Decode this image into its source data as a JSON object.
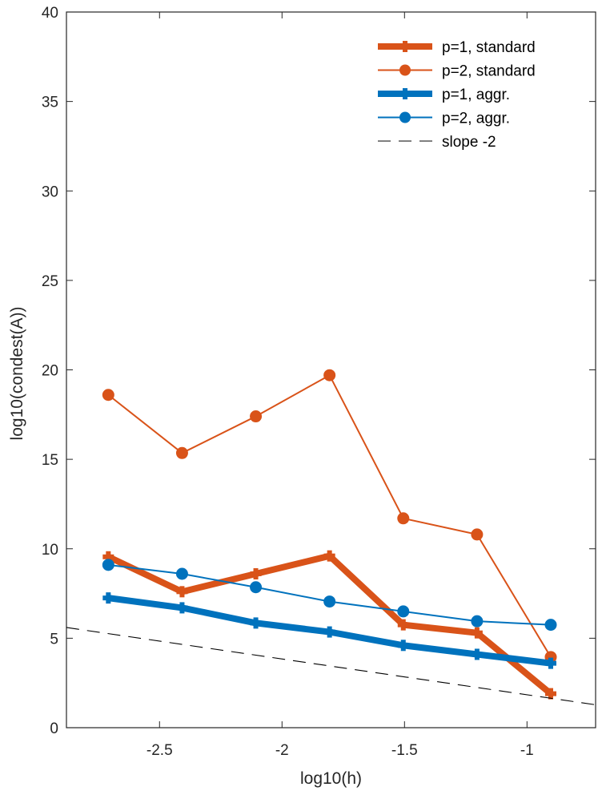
{
  "chart_data": {
    "type": "line",
    "xlabel": "log10(h)",
    "ylabel": "log10(condest(A))",
    "xlim": [
      -2.88,
      -0.72
    ],
    "ylim": [
      0,
      40
    ],
    "xticks": [
      -2.5,
      -2,
      -1.5,
      -1
    ],
    "xtick_labels": [
      "-2.5",
      "-2",
      "-1.5",
      "-1"
    ],
    "yticks": [
      0,
      5,
      10,
      15,
      20,
      25,
      30,
      35,
      40
    ],
    "ytick_labels": [
      "0",
      "5",
      "10",
      "15",
      "20",
      "25",
      "30",
      "35",
      "40"
    ],
    "grid": false,
    "legend_position": "top-right",
    "x": [
      -2.709,
      -2.408,
      -2.107,
      -1.806,
      -1.505,
      -1.204,
      -0.903
    ],
    "series": [
      {
        "name": "p=1, standard",
        "color": "#d95319",
        "line": "thick",
        "marker": "plus",
        "values": [
          9.55,
          7.6,
          8.6,
          9.6,
          5.75,
          5.3,
          1.9
        ]
      },
      {
        "name": "p=2, standard",
        "color": "#d95319",
        "line": "thin",
        "marker": "circle",
        "values": [
          18.6,
          15.35,
          17.4,
          19.7,
          11.7,
          10.8,
          3.95
        ]
      },
      {
        "name": "p=1, aggr.",
        "color": "#0072bd",
        "line": "thick",
        "marker": "plus",
        "values": [
          7.25,
          6.7,
          5.85,
          5.35,
          4.6,
          4.1,
          3.6
        ]
      },
      {
        "name": "p=2, aggr.",
        "color": "#0072bd",
        "line": "thin",
        "marker": "circle",
        "values": [
          9.1,
          8.6,
          7.85,
          7.05,
          6.5,
          5.95,
          5.75
        ]
      },
      {
        "name": "slope -2",
        "color": "#000000",
        "line": "dashed",
        "marker": "none",
        "x": [
          -2.88,
          -0.72
        ],
        "values": [
          5.6,
          1.28
        ]
      }
    ]
  }
}
